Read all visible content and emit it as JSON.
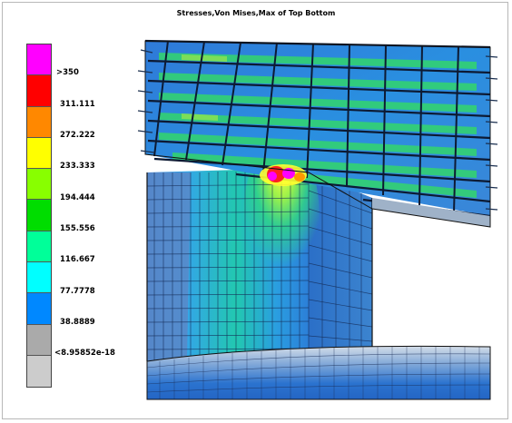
{
  "title": "Stresses,Von Mises,Max of Top Bottom",
  "legend": {
    "colors": [
      "#ff00ff",
      "#ff0000",
      "#ff8800",
      "#ffff00",
      "#88ff00",
      "#00dd00",
      "#00ff99",
      "#00ffff",
      "#0088ff",
      "#aaaaaa",
      "#cccccc"
    ],
    "labels": [
      ">350",
      "311.111",
      "272.222",
      "233.333",
      "194.444",
      "155.556",
      "116.667",
      "77.7778",
      "38.8889",
      "<8.95852e-18"
    ]
  }
}
